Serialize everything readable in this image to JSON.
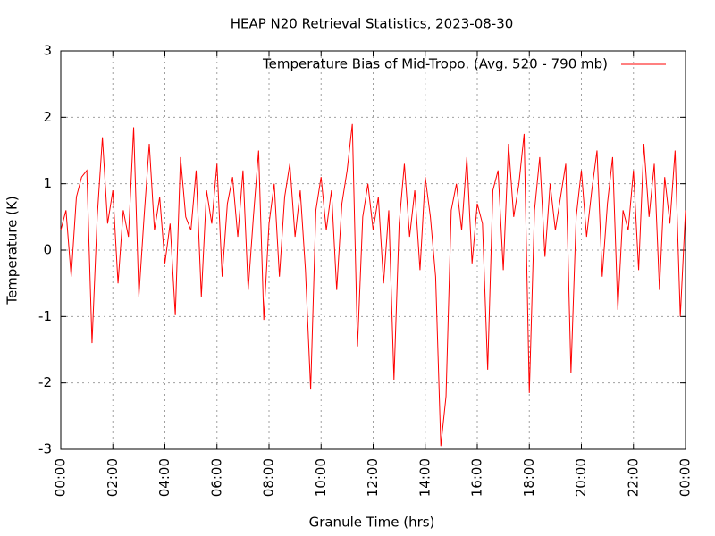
{
  "chart_data": {
    "type": "line",
    "title": "HEAP N20 Retrieval Statistics, 2023-08-30",
    "xlabel": "Granule Time (hrs)",
    "ylabel": "Temperature (K)",
    "xlim": [
      0,
      24
    ],
    "ylim": [
      -3,
      3
    ],
    "xticks": [
      {
        "value": 0,
        "label": "00:00"
      },
      {
        "value": 2,
        "label": "02:00"
      },
      {
        "value": 4,
        "label": "04:00"
      },
      {
        "value": 6,
        "label": "06:00"
      },
      {
        "value": 8,
        "label": "08:00"
      },
      {
        "value": 10,
        "label": "10:00"
      },
      {
        "value": 12,
        "label": "12:00"
      },
      {
        "value": 14,
        "label": "14:00"
      },
      {
        "value": 16,
        "label": "16:00"
      },
      {
        "value": 18,
        "label": "18:00"
      },
      {
        "value": 20,
        "label": "20:00"
      },
      {
        "value": 22,
        "label": "22:00"
      },
      {
        "value": 24,
        "label": "00:00"
      }
    ],
    "yticks": [
      -3,
      -2,
      -1,
      0,
      1,
      2,
      3
    ],
    "grid": true,
    "legend": "top-right",
    "x": [
      0,
      0.2,
      0.4,
      0.6,
      0.8,
      1,
      1.2,
      1.4,
      1.6,
      1.8,
      2,
      2.2,
      2.4,
      2.6,
      2.8,
      3,
      3.2,
      3.4,
      3.6,
      3.8,
      4,
      4.2,
      4.4,
      4.6,
      4.8,
      5,
      5.2,
      5.4,
      5.6,
      5.8,
      6,
      6.2,
      6.4,
      6.6,
      6.8,
      7,
      7.2,
      7.4,
      7.6,
      7.8,
      8,
      8.2,
      8.4,
      8.6,
      8.8,
      9,
      9.2,
      9.4,
      9.6,
      9.8,
      10,
      10.2,
      10.4,
      10.6,
      10.8,
      11,
      11.2,
      11.4,
      11.6,
      11.8,
      12,
      12.2,
      12.4,
      12.6,
      12.8,
      13,
      13.2,
      13.4,
      13.6,
      13.8,
      14,
      14.2,
      14.4,
      14.6,
      14.8,
      15,
      15.2,
      15.4,
      15.6,
      15.8,
      16,
      16.2,
      16.4,
      16.6,
      16.8,
      17,
      17.2,
      17.4,
      17.6,
      17.8,
      18,
      18.2,
      18.4,
      18.6,
      18.8,
      19,
      19.2,
      19.4,
      19.6,
      19.8,
      20,
      20.2,
      20.4,
      20.6,
      20.8,
      21,
      21.2,
      21.4,
      21.6,
      21.8,
      22,
      22.2,
      22.4,
      22.6,
      22.8,
      23,
      23.2,
      23.4,
      23.6,
      23.8,
      24
    ],
    "series": [
      {
        "name": "Temperature Bias of Mid-Tropo. (Avg. 520 - 790 mb)",
        "color": "#ff0000",
        "values": [
          0.3,
          0.6,
          -0.4,
          0.8,
          1.1,
          1.2,
          -1.4,
          0.5,
          1.7,
          0.4,
          0.9,
          -0.5,
          0.6,
          0.2,
          1.85,
          -0.7,
          0.5,
          1.6,
          0.3,
          0.8,
          -0.2,
          0.4,
          -0.98,
          1.4,
          0.5,
          0.3,
          1.2,
          -0.7,
          0.9,
          0.4,
          1.3,
          -0.4,
          0.7,
          1.1,
          0.2,
          1.2,
          -0.6,
          0.5,
          1.5,
          -1.05,
          0.4,
          1.0,
          -0.4,
          0.8,
          1.3,
          0.2,
          0.9,
          -0.3,
          -2.1,
          0.6,
          1.1,
          0.3,
          0.9,
          -0.6,
          0.7,
          1.2,
          1.9,
          -1.45,
          0.5,
          1.0,
          0.3,
          0.8,
          -0.5,
          0.6,
          -1.95,
          0.4,
          1.3,
          0.2,
          0.9,
          -0.3,
          1.1,
          0.5,
          -0.4,
          -2.95,
          -2.2,
          0.6,
          1.0,
          0.3,
          1.4,
          -0.2,
          0.7,
          0.4,
          -1.8,
          0.9,
          1.2,
          -0.3,
          1.6,
          0.5,
          1.0,
          1.75,
          -2.15,
          0.6,
          1.4,
          -0.1,
          1.0,
          0.3,
          0.8,
          1.3,
          -1.85,
          0.5,
          1.2,
          0.2,
          0.9,
          1.5,
          -0.4,
          0.7,
          1.4,
          -0.9,
          0.6,
          0.3,
          1.2,
          -0.3,
          1.6,
          0.5,
          1.3,
          -0.6,
          1.1,
          0.4,
          1.5,
          -1.0,
          0.6
        ]
      }
    ]
  }
}
